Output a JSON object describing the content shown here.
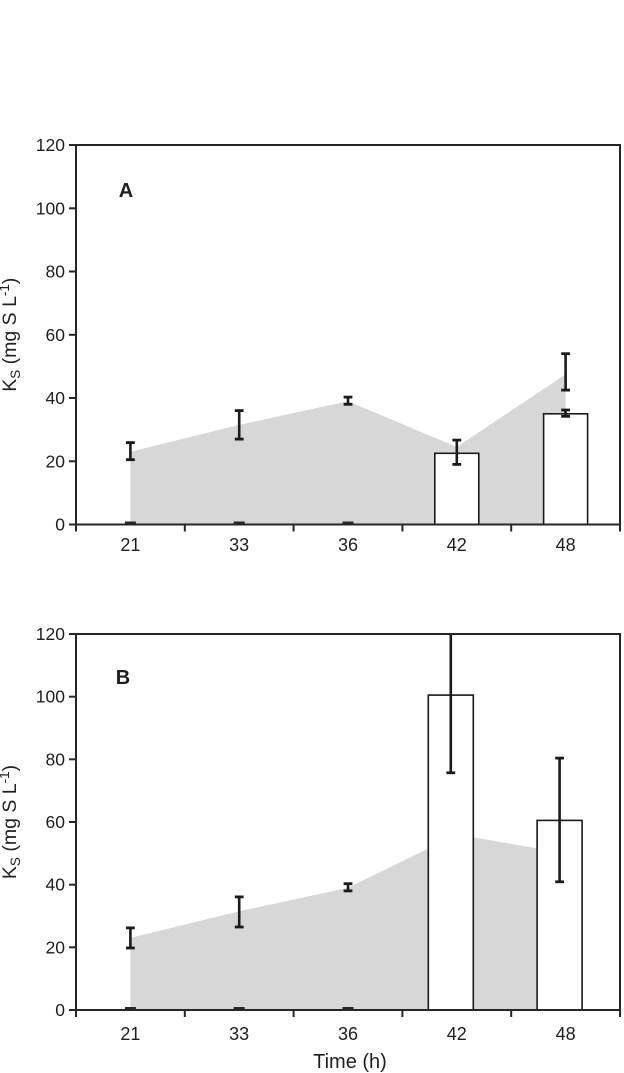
{
  "page": {
    "background": "#ffffff"
  },
  "figure": {
    "x_axis_title": "Time (h)",
    "y_axis_title_plain": "Ks (mg S L-1)",
    "y_axis_title_parts": {
      "main": "K",
      "sub": "S",
      "mid": " (mg S L",
      "sup": "-1",
      "end": ")"
    },
    "colors": {
      "area_fill": "#d7d7d7",
      "bar_fill": "#ffffff",
      "bar_stroke": "#1a1a1a",
      "error_bar": "#1a1a1a",
      "axis": "#262626",
      "text": "#1f1f1f"
    }
  },
  "chart_data": [
    {
      "panel_label": "A",
      "type": "bar",
      "subtype": "combo-area-and-open-bars-with-error-bars",
      "categories": [
        "21",
        "33",
        "36",
        "42",
        "48"
      ],
      "xlabel": "",
      "ylabel": "Ks (mg S L-1)",
      "ylim": [
        0,
        120
      ],
      "yticks": [
        0,
        20,
        40,
        60,
        80,
        100,
        120
      ],
      "grid": false,
      "legend": "none",
      "series": [
        {
          "name": "shaded-area",
          "type": "area",
          "values": [
            23,
            31.5,
            39,
            24.5,
            47.5
          ],
          "error_bars": [
            [
              20.5,
              25.9
            ],
            [
              27,
              36
            ],
            [
              38,
              40.3
            ],
            null,
            [
              42.5,
              54
            ]
          ]
        },
        {
          "name": "open-bars",
          "type": "bar",
          "values": [
            0,
            0,
            0,
            22.5,
            35
          ],
          "error_bars": [
            null,
            null,
            null,
            [
              19,
              26.7
            ],
            [
              34.2,
              36.2
            ]
          ]
        }
      ]
    },
    {
      "panel_label": "B",
      "type": "bar",
      "subtype": "combo-area-and-open-bars-with-error-bars",
      "categories": [
        "21",
        "33",
        "36",
        "42",
        "48"
      ],
      "xlabel": "Time (h)",
      "ylabel": "Ks (mg S L-1)",
      "ylim": [
        0,
        120
      ],
      "yticks": [
        0,
        20,
        40,
        60,
        80,
        100,
        120
      ],
      "grid": false,
      "legend": "none",
      "series": [
        {
          "name": "shaded-area",
          "type": "area",
          "values": [
            23,
            31.5,
            39,
            56,
            50
          ],
          "error_bars": [
            [
              19.8,
              26.2
            ],
            [
              26.5,
              36.1
            ],
            [
              38,
              40.3
            ],
            null,
            null
          ]
        },
        {
          "name": "open-bars",
          "type": "bar",
          "values": [
            0,
            0,
            0,
            100.5,
            60.5
          ],
          "error_bars": [
            null,
            null,
            null,
            [
              75.7,
              125.5
            ],
            [
              40.9,
              80.4
            ]
          ]
        }
      ]
    }
  ]
}
